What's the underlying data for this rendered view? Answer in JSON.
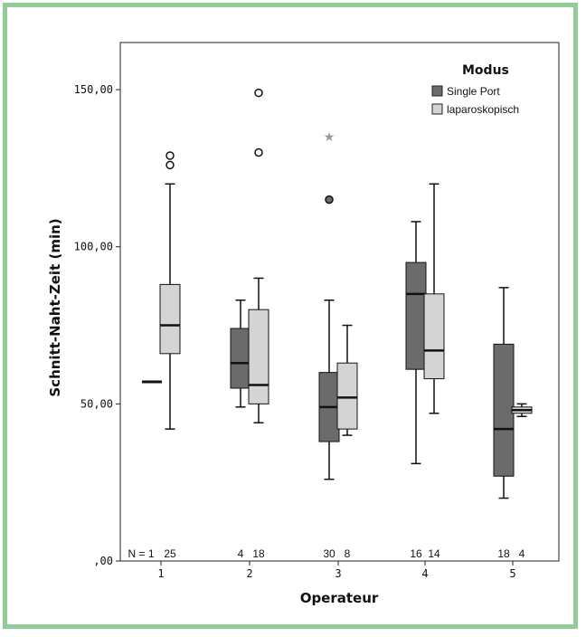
{
  "chart_data": {
    "type": "boxplot",
    "xlabel": "Operateur",
    "ylabel": "Schnitt-Naht-Zeit (min)",
    "categories": [
      "1",
      "2",
      "3",
      "4",
      "5"
    ],
    "ylim": [
      0,
      165
    ],
    "yticks": [
      {
        "value": 0,
        "label": ",00"
      },
      {
        "value": 50,
        "label": "50,00"
      },
      {
        "value": 100,
        "label": "100,00"
      },
      {
        "value": 150,
        "label": "150,00"
      }
    ],
    "legend": {
      "title": "Modus",
      "position": "top-right"
    },
    "n_prefix": "N = ",
    "series": [
      {
        "name": "Single Port",
        "color": "#6b6b6b",
        "boxes": [
          {
            "category": "1",
            "n": 1,
            "min": 57,
            "q1": 57,
            "median": 57,
            "q3": 57,
            "max": 57,
            "outliers": [],
            "extremes": []
          },
          {
            "category": "2",
            "n": 4,
            "min": 49,
            "q1": 55,
            "median": 63,
            "q3": 74,
            "max": 83,
            "outliers": [],
            "extremes": []
          },
          {
            "category": "3",
            "n": 30,
            "min": 26,
            "q1": 38,
            "median": 49,
            "q3": 60,
            "max": 83,
            "outliers": [
              115
            ],
            "extremes": [
              135
            ]
          },
          {
            "category": "4",
            "n": 16,
            "min": 31,
            "q1": 61,
            "median": 85,
            "q3": 95,
            "max": 108,
            "outliers": [],
            "extremes": []
          },
          {
            "category": "5",
            "n": 18,
            "min": 20,
            "q1": 27,
            "median": 42,
            "q3": 69,
            "max": 87,
            "outliers": [],
            "extremes": []
          }
        ]
      },
      {
        "name": "laparoskopisch",
        "color": "#d4d4d4",
        "boxes": [
          {
            "category": "1",
            "n": 25,
            "min": 42,
            "q1": 66,
            "median": 75,
            "q3": 88,
            "max": 120,
            "outliers": [
              126,
              129
            ],
            "extremes": []
          },
          {
            "category": "2",
            "n": 18,
            "min": 44,
            "q1": 50,
            "median": 56,
            "q3": 80,
            "max": 90,
            "outliers": [
              130,
              149
            ],
            "extremes": []
          },
          {
            "category": "3",
            "n": 8,
            "min": 40,
            "q1": 42,
            "median": 52,
            "q3": 63,
            "max": 75,
            "outliers": [],
            "extremes": []
          },
          {
            "category": "4",
            "n": 14,
            "min": 47,
            "q1": 58,
            "median": 67,
            "q3": 85,
            "max": 120,
            "outliers": [],
            "extremes": []
          },
          {
            "category": "5",
            "n": 4,
            "min": 46,
            "q1": 47,
            "median": 48,
            "q3": 49,
            "max": 50,
            "outliers": [],
            "extremes": []
          }
        ]
      }
    ]
  }
}
